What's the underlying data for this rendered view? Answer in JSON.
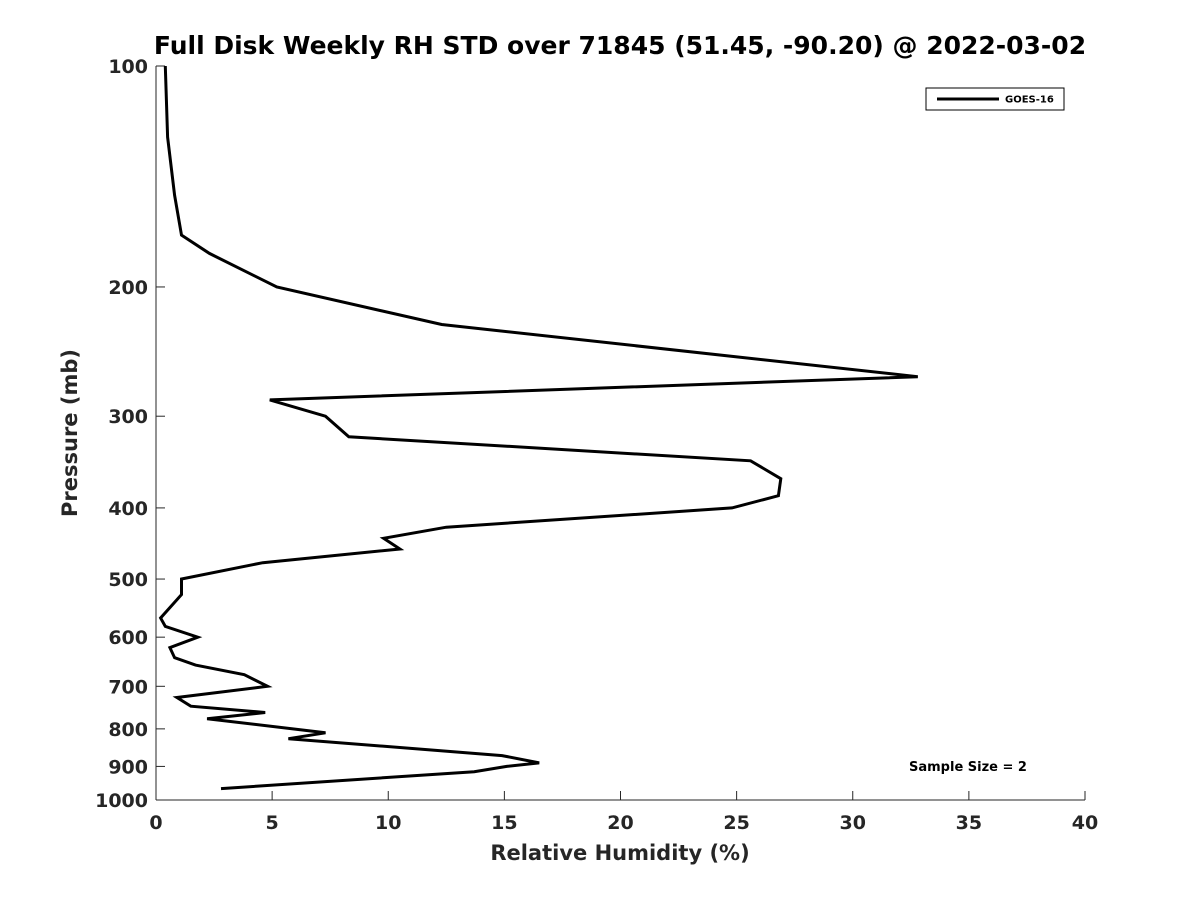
{
  "chart_data": {
    "type": "line",
    "title": "Full Disk Weekly RH STD over 71845 (51.45, -90.20) @ 2022-03-02",
    "xlabel": "Relative Humidity (%)",
    "ylabel": "Pressure (mb)",
    "xlim": [
      0,
      40
    ],
    "ylim": [
      100,
      1000
    ],
    "y_scale": "log",
    "y_reversed": true,
    "xticks": [
      0,
      5,
      10,
      15,
      20,
      25,
      30,
      35,
      40
    ],
    "xtick_labels": [
      "0",
      "5",
      "10",
      "15",
      "20",
      "25",
      "30",
      "35",
      "40"
    ],
    "yticks": [
      100,
      200,
      300,
      400,
      500,
      600,
      700,
      800,
      900,
      1000
    ],
    "ytick_labels": [
      "100",
      "200",
      "300",
      "400",
      "500",
      "600",
      "700",
      "800",
      "900",
      "1000"
    ],
    "grid": false,
    "legend_position": "top-right",
    "annotation": "Sample Size = 2",
    "series": [
      {
        "name": "GOES-16",
        "color": "#000000",
        "points": [
          {
            "x": 0.4,
            "y": 100
          },
          {
            "x": 0.5,
            "y": 125
          },
          {
            "x": 0.8,
            "y": 150
          },
          {
            "x": 1.1,
            "y": 170
          },
          {
            "x": 2.3,
            "y": 180
          },
          {
            "x": 5.2,
            "y": 200
          },
          {
            "x": 12.3,
            "y": 225
          },
          {
            "x": 32.8,
            "y": 265
          },
          {
            "x": 4.9,
            "y": 285
          },
          {
            "x": 7.3,
            "y": 300
          },
          {
            "x": 8.3,
            "y": 320
          },
          {
            "x": 25.6,
            "y": 345
          },
          {
            "x": 26.9,
            "y": 365
          },
          {
            "x": 26.8,
            "y": 385
          },
          {
            "x": 24.8,
            "y": 400
          },
          {
            "x": 12.5,
            "y": 425
          },
          {
            "x": 9.8,
            "y": 440
          },
          {
            "x": 10.5,
            "y": 455
          },
          {
            "x": 4.6,
            "y": 475
          },
          {
            "x": 1.1,
            "y": 500
          },
          {
            "x": 1.1,
            "y": 525
          },
          {
            "x": 0.2,
            "y": 565
          },
          {
            "x": 0.4,
            "y": 580
          },
          {
            "x": 1.8,
            "y": 600
          },
          {
            "x": 0.6,
            "y": 620
          },
          {
            "x": 0.8,
            "y": 640
          },
          {
            "x": 1.7,
            "y": 655
          },
          {
            "x": 3.8,
            "y": 675
          },
          {
            "x": 4.8,
            "y": 700
          },
          {
            "x": 0.9,
            "y": 725
          },
          {
            "x": 1.5,
            "y": 745
          },
          {
            "x": 4.7,
            "y": 760
          },
          {
            "x": 2.2,
            "y": 775
          },
          {
            "x": 7.3,
            "y": 810
          },
          {
            "x": 5.7,
            "y": 825
          },
          {
            "x": 14.9,
            "y": 870
          },
          {
            "x": 16.5,
            "y": 890
          },
          {
            "x": 15.1,
            "y": 900
          },
          {
            "x": 13.7,
            "y": 915
          },
          {
            "x": 2.8,
            "y": 965
          }
        ]
      }
    ]
  }
}
